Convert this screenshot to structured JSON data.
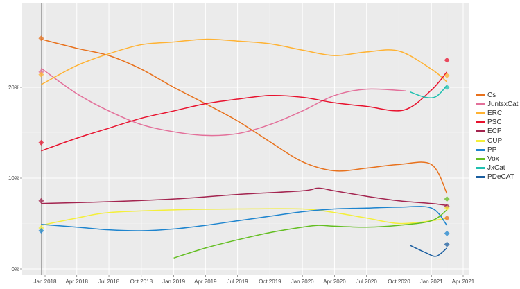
{
  "chart_data": {
    "type": "line",
    "title": "",
    "xlabel": "",
    "ylabel": "",
    "ylim": [
      0,
      29
    ],
    "grid": true,
    "legend_position": "right",
    "x_ticks": [
      "Jan 2018",
      "Apr 2018",
      "Jul 2018",
      "Oct 2018",
      "Jan 2019",
      "Apr 2019",
      "Jul 2019",
      "Oct 2019",
      "Jan 2020",
      "Apr 2020",
      "Jul 2020",
      "Oct 2020",
      "Jan 2021",
      "Apr 2021"
    ],
    "y_ticks": [
      "0%",
      "10%",
      "20%"
    ],
    "election_dates": [
      "2017-12-21",
      "2021-02-14"
    ],
    "series": [
      {
        "name": "Cs",
        "color": "#e8711c",
        "points": [
          [
            "2017-12-21",
            25.3
          ],
          [
            "2018-04-01",
            24.3
          ],
          [
            "2018-07-01",
            23.5
          ],
          [
            "2018-10-01",
            22
          ],
          [
            "2019-01-01",
            20
          ],
          [
            "2019-04-01",
            18.2
          ],
          [
            "2019-07-01",
            16.3
          ],
          [
            "2019-10-01",
            14
          ],
          [
            "2020-01-01",
            11.8
          ],
          [
            "2020-04-01",
            10.8
          ],
          [
            "2020-07-01",
            11.1
          ],
          [
            "2020-10-01",
            11.5
          ],
          [
            "2021-01-01",
            11.5
          ],
          [
            "2021-02-14",
            8.3
          ]
        ]
      },
      {
        "name": "JuntsxCat",
        "color": "#e3709a",
        "points": [
          [
            "2017-12-21",
            22.1
          ],
          [
            "2018-04-01",
            19.3
          ],
          [
            "2018-07-01",
            17.4
          ],
          [
            "2018-10-01",
            15.9
          ],
          [
            "2019-01-01",
            15.1
          ],
          [
            "2019-04-01",
            14.7
          ],
          [
            "2019-07-01",
            14.9
          ],
          [
            "2019-10-01",
            15.9
          ],
          [
            "2020-01-01",
            17.4
          ],
          [
            "2020-04-01",
            19.1
          ],
          [
            "2020-07-01",
            19.8
          ],
          [
            "2020-10-20",
            19.6
          ]
        ]
      },
      {
        "name": "ERC",
        "color": "#ffb232",
        "points": [
          [
            "2017-12-21",
            20.3
          ],
          [
            "2018-04-01",
            22.4
          ],
          [
            "2018-07-01",
            23.7
          ],
          [
            "2018-10-01",
            24.7
          ],
          [
            "2019-01-01",
            25
          ],
          [
            "2019-04-01",
            25.3
          ],
          [
            "2019-07-01",
            25.1
          ],
          [
            "2019-10-01",
            24.8
          ],
          [
            "2020-01-01",
            24.1
          ],
          [
            "2020-04-01",
            23.5
          ],
          [
            "2020-07-01",
            23.9
          ],
          [
            "2020-10-01",
            24
          ],
          [
            "2021-01-01",
            22
          ],
          [
            "2021-02-14",
            20.6
          ]
        ]
      },
      {
        "name": "PSC",
        "color": "#e8112d",
        "points": [
          [
            "2017-12-21",
            13
          ],
          [
            "2018-04-01",
            14.4
          ],
          [
            "2018-07-01",
            15.5
          ],
          [
            "2018-10-01",
            16.6
          ],
          [
            "2019-01-01",
            17.4
          ],
          [
            "2019-04-01",
            18.2
          ],
          [
            "2019-07-01",
            18.7
          ],
          [
            "2019-10-01",
            19.1
          ],
          [
            "2020-01-01",
            18.9
          ],
          [
            "2020-04-01",
            18.3
          ],
          [
            "2020-07-01",
            17.9
          ],
          [
            "2020-10-15",
            17.5
          ],
          [
            "2021-01-01",
            19.7
          ],
          [
            "2021-02-14",
            21.7
          ]
        ]
      },
      {
        "name": "ECP",
        "color": "#a3244f",
        "points": [
          [
            "2017-12-21",
            7.2
          ],
          [
            "2018-07-01",
            7.4
          ],
          [
            "2019-01-01",
            7.7
          ],
          [
            "2019-07-01",
            8.2
          ],
          [
            "2020-01-01",
            8.6
          ],
          [
            "2020-02-15",
            8.9
          ],
          [
            "2020-04-01",
            8.6
          ],
          [
            "2020-07-01",
            8
          ],
          [
            "2020-10-01",
            7.5
          ],
          [
            "2021-01-01",
            7.2
          ],
          [
            "2021-02-14",
            7
          ]
        ]
      },
      {
        "name": "CUP",
        "color": "#f4ef3a",
        "points": [
          [
            "2017-12-21",
            4.8
          ],
          [
            "2018-04-01",
            5.6
          ],
          [
            "2018-07-01",
            6.2
          ],
          [
            "2019-01-01",
            6.5
          ],
          [
            "2019-07-01",
            6.6
          ],
          [
            "2020-01-01",
            6.6
          ],
          [
            "2020-04-01",
            6.2
          ],
          [
            "2020-07-01",
            5.6
          ],
          [
            "2020-10-01",
            5
          ],
          [
            "2021-01-01",
            5.3
          ],
          [
            "2021-02-14",
            5.6
          ]
        ]
      },
      {
        "name": "PP",
        "color": "#1d84ce",
        "points": [
          [
            "2017-12-21",
            4.9
          ],
          [
            "2018-04-01",
            4.6
          ],
          [
            "2018-07-01",
            4.3
          ],
          [
            "2018-10-01",
            4.2
          ],
          [
            "2019-01-01",
            4.4
          ],
          [
            "2019-04-01",
            4.8
          ],
          [
            "2019-07-01",
            5.3
          ],
          [
            "2019-10-01",
            5.8
          ],
          [
            "2020-01-01",
            6.3
          ],
          [
            "2020-04-01",
            6.6
          ],
          [
            "2020-07-01",
            6.7
          ],
          [
            "2020-10-01",
            6.8
          ],
          [
            "2021-01-01",
            6.7
          ],
          [
            "2021-02-14",
            4.8
          ]
        ]
      },
      {
        "name": "Vox",
        "color": "#63be21",
        "points": [
          [
            "2019-01-01",
            1.2
          ],
          [
            "2019-04-01",
            2.3
          ],
          [
            "2019-07-01",
            3.2
          ],
          [
            "2019-10-01",
            4
          ],
          [
            "2020-01-01",
            4.6
          ],
          [
            "2020-02-15",
            4.8
          ],
          [
            "2020-04-01",
            4.7
          ],
          [
            "2020-07-01",
            4.6
          ],
          [
            "2020-10-01",
            4.8
          ],
          [
            "2021-01-01",
            5.3
          ],
          [
            "2021-02-14",
            6.5
          ]
        ]
      },
      {
        "name": "JxCat",
        "color": "#20c0b0",
        "points": [
          [
            "2020-11-01",
            19.5
          ],
          [
            "2020-12-15",
            18.9
          ],
          [
            "2021-01-15",
            19
          ],
          [
            "2021-02-14",
            20.2
          ]
        ]
      },
      {
        "name": "PDeCAT",
        "color": "#1a5ea0",
        "points": [
          [
            "2020-11-01",
            2.6
          ],
          [
            "2020-12-15",
            1.8
          ],
          [
            "2021-01-15",
            1.4
          ],
          [
            "2021-02-14",
            2.3
          ]
        ]
      }
    ],
    "election_results": [
      {
        "party": "Cs",
        "date": "2017-12-21",
        "value": 25.4
      },
      {
        "party": "JuntsxCat",
        "date": "2017-12-21",
        "value": 21.7
      },
      {
        "party": "ERC",
        "date": "2017-12-21",
        "value": 21.4
      },
      {
        "party": "PSC",
        "date": "2017-12-21",
        "value": 13.9
      },
      {
        "party": "ECP",
        "date": "2017-12-21",
        "value": 7.5
      },
      {
        "party": "CUP",
        "date": "2017-12-21",
        "value": 4.5
      },
      {
        "party": "PP",
        "date": "2017-12-21",
        "value": 4.2
      },
      {
        "party": "PSC",
        "date": "2021-02-14",
        "value": 23
      },
      {
        "party": "ERC",
        "date": "2021-02-14",
        "value": 21.3
      },
      {
        "party": "JxCat",
        "date": "2021-02-14",
        "value": 20
      },
      {
        "party": "Vox",
        "date": "2021-02-14",
        "value": 7.7
      },
      {
        "party": "ECP",
        "date": "2021-02-14",
        "value": 6.9
      },
      {
        "party": "CUP",
        "date": "2021-02-14",
        "value": 6.7
      },
      {
        "party": "Cs",
        "date": "2021-02-14",
        "value": 5.6
      },
      {
        "party": "PP",
        "date": "2021-02-14",
        "value": 3.9
      },
      {
        "party": "PDeCAT",
        "date": "2021-02-14",
        "value": 2.7
      }
    ]
  }
}
